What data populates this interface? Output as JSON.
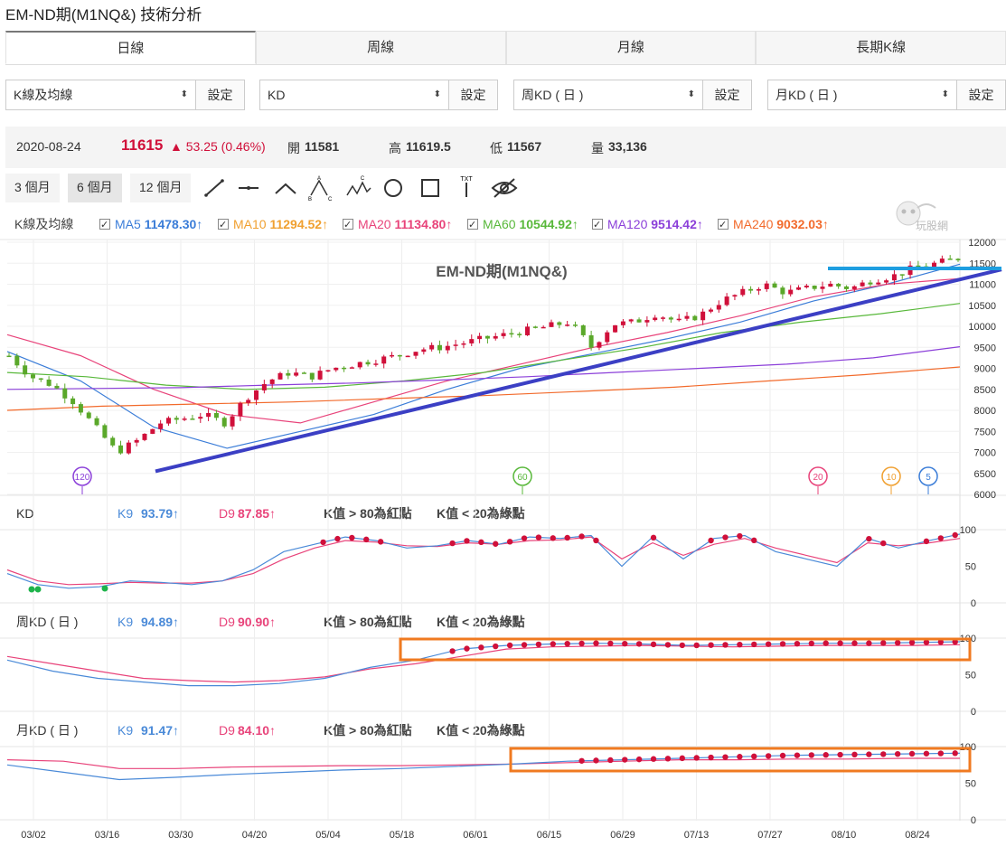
{
  "title": "EM-ND期(M1NQ&) 技術分析",
  "tabs": [
    "日線",
    "周線",
    "月線",
    "長期K線"
  ],
  "selectors": [
    {
      "value": "K線及均線",
      "button": "設定"
    },
    {
      "value": "KD",
      "button": "設定"
    },
    {
      "value": "周KD ( 日 )",
      "button": "設定"
    },
    {
      "value": "月KD ( 日 )",
      "button": "設定"
    }
  ],
  "quote": {
    "date": "2020-08-24",
    "price": "11615",
    "change": "▲ 53.25 (0.46%)",
    "open_label": "開",
    "open": "11581",
    "high_label": "高",
    "high": "11619.5",
    "low_label": "低",
    "low": "11567",
    "vol_label": "量",
    "vol": "33,136"
  },
  "ranges": [
    "3 個月",
    "6 個月",
    "12 個月"
  ],
  "tools": [
    "line-tool-icon",
    "horizontal-line-icon",
    "angle-tool-icon",
    "abc-pattern-icon",
    "abcde-pattern-icon",
    "circle-tool-icon",
    "rectangle-tool-icon",
    "text-tool-icon",
    "hide-drawings-icon"
  ],
  "tool_labels": {
    "a": "A",
    "b": "B",
    "c": "C",
    "txt": "TXT"
  },
  "watermark": "玩股網",
  "ma_legend": {
    "label": "K線及均線",
    "items": [
      {
        "name": "MA5",
        "value": "11478.30↑",
        "color": "#3b7dd8"
      },
      {
        "name": "MA10",
        "value": "11294.52↑",
        "color": "#f0a030"
      },
      {
        "name": "MA20",
        "value": "11134.80↑",
        "color": "#e8437a"
      },
      {
        "name": "MA60",
        "value": "10544.92↑",
        "color": "#58b83a"
      },
      {
        "name": "MA120",
        "value": "9514.42↑",
        "color": "#8b3fd9"
      },
      {
        "name": "MA240",
        "value": "9032.03↑",
        "color": "#f26a2b"
      }
    ]
  },
  "chart_label": "EM-ND期(M1NQ&)",
  "ma_markers": [
    "120",
    "60",
    "20",
    "10",
    "5"
  ],
  "kd_panels": [
    {
      "label": "KD",
      "k_name": "K9",
      "k_value": "93.79↑",
      "d_name": "D9",
      "d_value": "87.85↑",
      "note1": "K值 > 80為紅點",
      "note2": "K值 < 20為綠點"
    },
    {
      "label": "周KD ( 日 )",
      "k_name": "K9",
      "k_value": "94.89↑",
      "d_name": "D9",
      "d_value": "90.90↑",
      "note1": "K值 > 80為紅點",
      "note2": "K值 < 20為綠點"
    },
    {
      "label": "月KD ( 日 )",
      "k_name": "K9",
      "k_value": "91.47↑",
      "d_name": "D9",
      "d_value": "84.10↑",
      "note1": "K值 > 80為紅點",
      "note2": "K值 < 20為綠點"
    }
  ],
  "colors": {
    "up": "#d0103a",
    "down": "#5aa82a",
    "k_line": "#4a8ad8",
    "d_line": "#e8437a",
    "trend": "#3b3fc4",
    "resistance": "#1e9ee0",
    "highlight": "#f07a20"
  },
  "chart_data": {
    "type": "candlestick",
    "price_axis": {
      "ticks": [
        "12000",
        "11500",
        "11000",
        "10500",
        "10000",
        "9500",
        "9000",
        "8500",
        "8000",
        "7500",
        "7000",
        "6500",
        "6000"
      ],
      "ylim": [
        6000,
        12000
      ]
    },
    "kd_axis": {
      "ticks": [
        "100",
        "50",
        "0"
      ],
      "ylim": [
        0,
        100
      ]
    },
    "x_ticks": [
      "03/02",
      "03/16",
      "03/30",
      "04/20",
      "05/04",
      "05/18",
      "06/01",
      "06/15",
      "06/29",
      "07/13",
      "07/27",
      "08/10",
      "08/24"
    ],
    "close_path": [
      9300,
      8800,
      8600,
      8200,
      7600,
      7000,
      7300,
      7700,
      7800,
      7900,
      7700,
      8300,
      8700,
      8900,
      8800,
      9000,
      9100,
      9200,
      9300,
      9450,
      9500,
      9600,
      9700,
      9800,
      9900,
      10000,
      10100,
      9500,
      10050,
      10100,
      10300,
      10100,
      10250,
      10600,
      10800,
      11000,
      10800,
      10900,
      11000,
      10900,
      11100,
      11200,
      11400,
      11500,
      11615
    ],
    "ma_series": {
      "MA5": [
        9400,
        8700,
        7600,
        7100,
        7500,
        7900,
        8500,
        9000,
        9350,
        9700,
        10100,
        10600,
        11000,
        11478
      ],
      "MA20": [
        9800,
        9300,
        8500,
        7900,
        7700,
        8200,
        8700,
        9100,
        9500,
        9850,
        10250,
        10700,
        11000,
        11135
      ],
      "MA60": [
        8900,
        8800,
        8600,
        8500,
        8550,
        8700,
        8900,
        9200,
        9500,
        9850,
        10100,
        10300,
        10545
      ],
      "MA120": [
        8500,
        8520,
        8540,
        8600,
        8650,
        8720,
        8800,
        8900,
        9000,
        9100,
        9250,
        9514
      ],
      "MA240": [
        8000,
        8100,
        8150,
        8200,
        8280,
        8350,
        8450,
        8550,
        8700,
        8850,
        9032
      ]
    },
    "trend_line": [
      6550,
      11350
    ],
    "resistance": 11450,
    "kd_daily": {
      "k": [
        40,
        25,
        20,
        22,
        30,
        28,
        25,
        30,
        45,
        70,
        80,
        90,
        85,
        75,
        78,
        85,
        80,
        90,
        88,
        92,
        50,
        90,
        60,
        88,
        92,
        70,
        60,
        50,
        88,
        75,
        85,
        94
      ],
      "d": [
        45,
        30,
        25,
        26,
        28,
        27,
        27,
        30,
        40,
        60,
        75,
        85,
        83,
        78,
        77,
        82,
        80,
        85,
        86,
        90,
        60,
        82,
        65,
        80,
        88,
        75,
        65,
        55,
        82,
        78,
        82,
        88
      ]
    },
    "kd_weekly": {
      "k": [
        70,
        55,
        45,
        40,
        35,
        35,
        38,
        45,
        60,
        70,
        85,
        90,
        92,
        93,
        92,
        90,
        91,
        92,
        93,
        93,
        94,
        95
      ],
      "d": [
        75,
        65,
        55,
        45,
        42,
        40,
        42,
        47,
        58,
        65,
        75,
        85,
        88,
        89,
        90,
        89,
        88,
        89,
        90,
        90,
        90,
        91
      ]
    },
    "kd_monthly": {
      "k": [
        75,
        65,
        55,
        58,
        62,
        65,
        68,
        70,
        73,
        76,
        80,
        82,
        84,
        86,
        88,
        89,
        90,
        91
      ],
      "d": [
        82,
        80,
        70,
        70,
        72,
        73,
        74,
        74,
        75,
        76,
        78,
        80,
        82,
        82,
        83,
        83,
        84,
        84
      ]
    }
  }
}
